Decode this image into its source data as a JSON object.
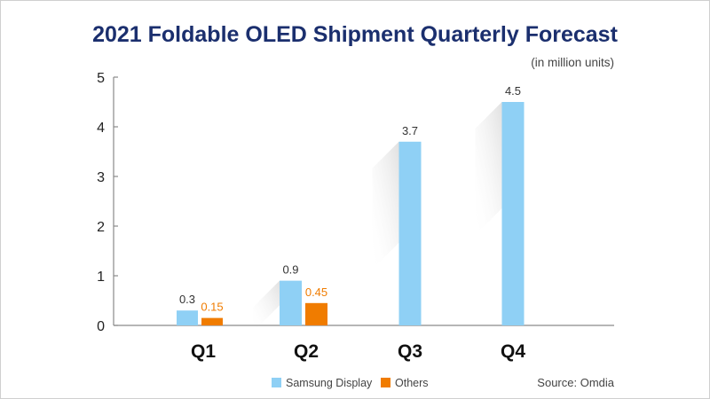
{
  "chart_data": {
    "type": "bar",
    "title": "2021 Foldable OLED Shipment Quarterly Forecast",
    "unit_label": "(in million units)",
    "categories": [
      "Q1",
      "Q2",
      "Q3",
      "Q4"
    ],
    "series": [
      {
        "name": "Samsung Display",
        "values": [
          0.3,
          0.9,
          3.7,
          4.5
        ],
        "labels": [
          "0.3",
          "0.9",
          "3.7",
          "4.5"
        ],
        "color": "#8fd0f5",
        "label_color": "#333333"
      },
      {
        "name": "Others",
        "values": [
          0.15,
          0.45,
          null,
          null
        ],
        "labels": [
          "0.15",
          "0.45",
          "",
          ""
        ],
        "color": "#f07c00",
        "label_color": "#f07c00"
      }
    ],
    "yticks": [
      "0",
      "1",
      "2",
      "3",
      "4",
      "5"
    ],
    "ylim": [
      0,
      5
    ],
    "xlabel": "",
    "ylabel": "",
    "legend_position": "bottom-center",
    "source": "Source: Omdia",
    "colors": {
      "title": "#1b2f6e",
      "axis": "#8a8a8a"
    }
  }
}
